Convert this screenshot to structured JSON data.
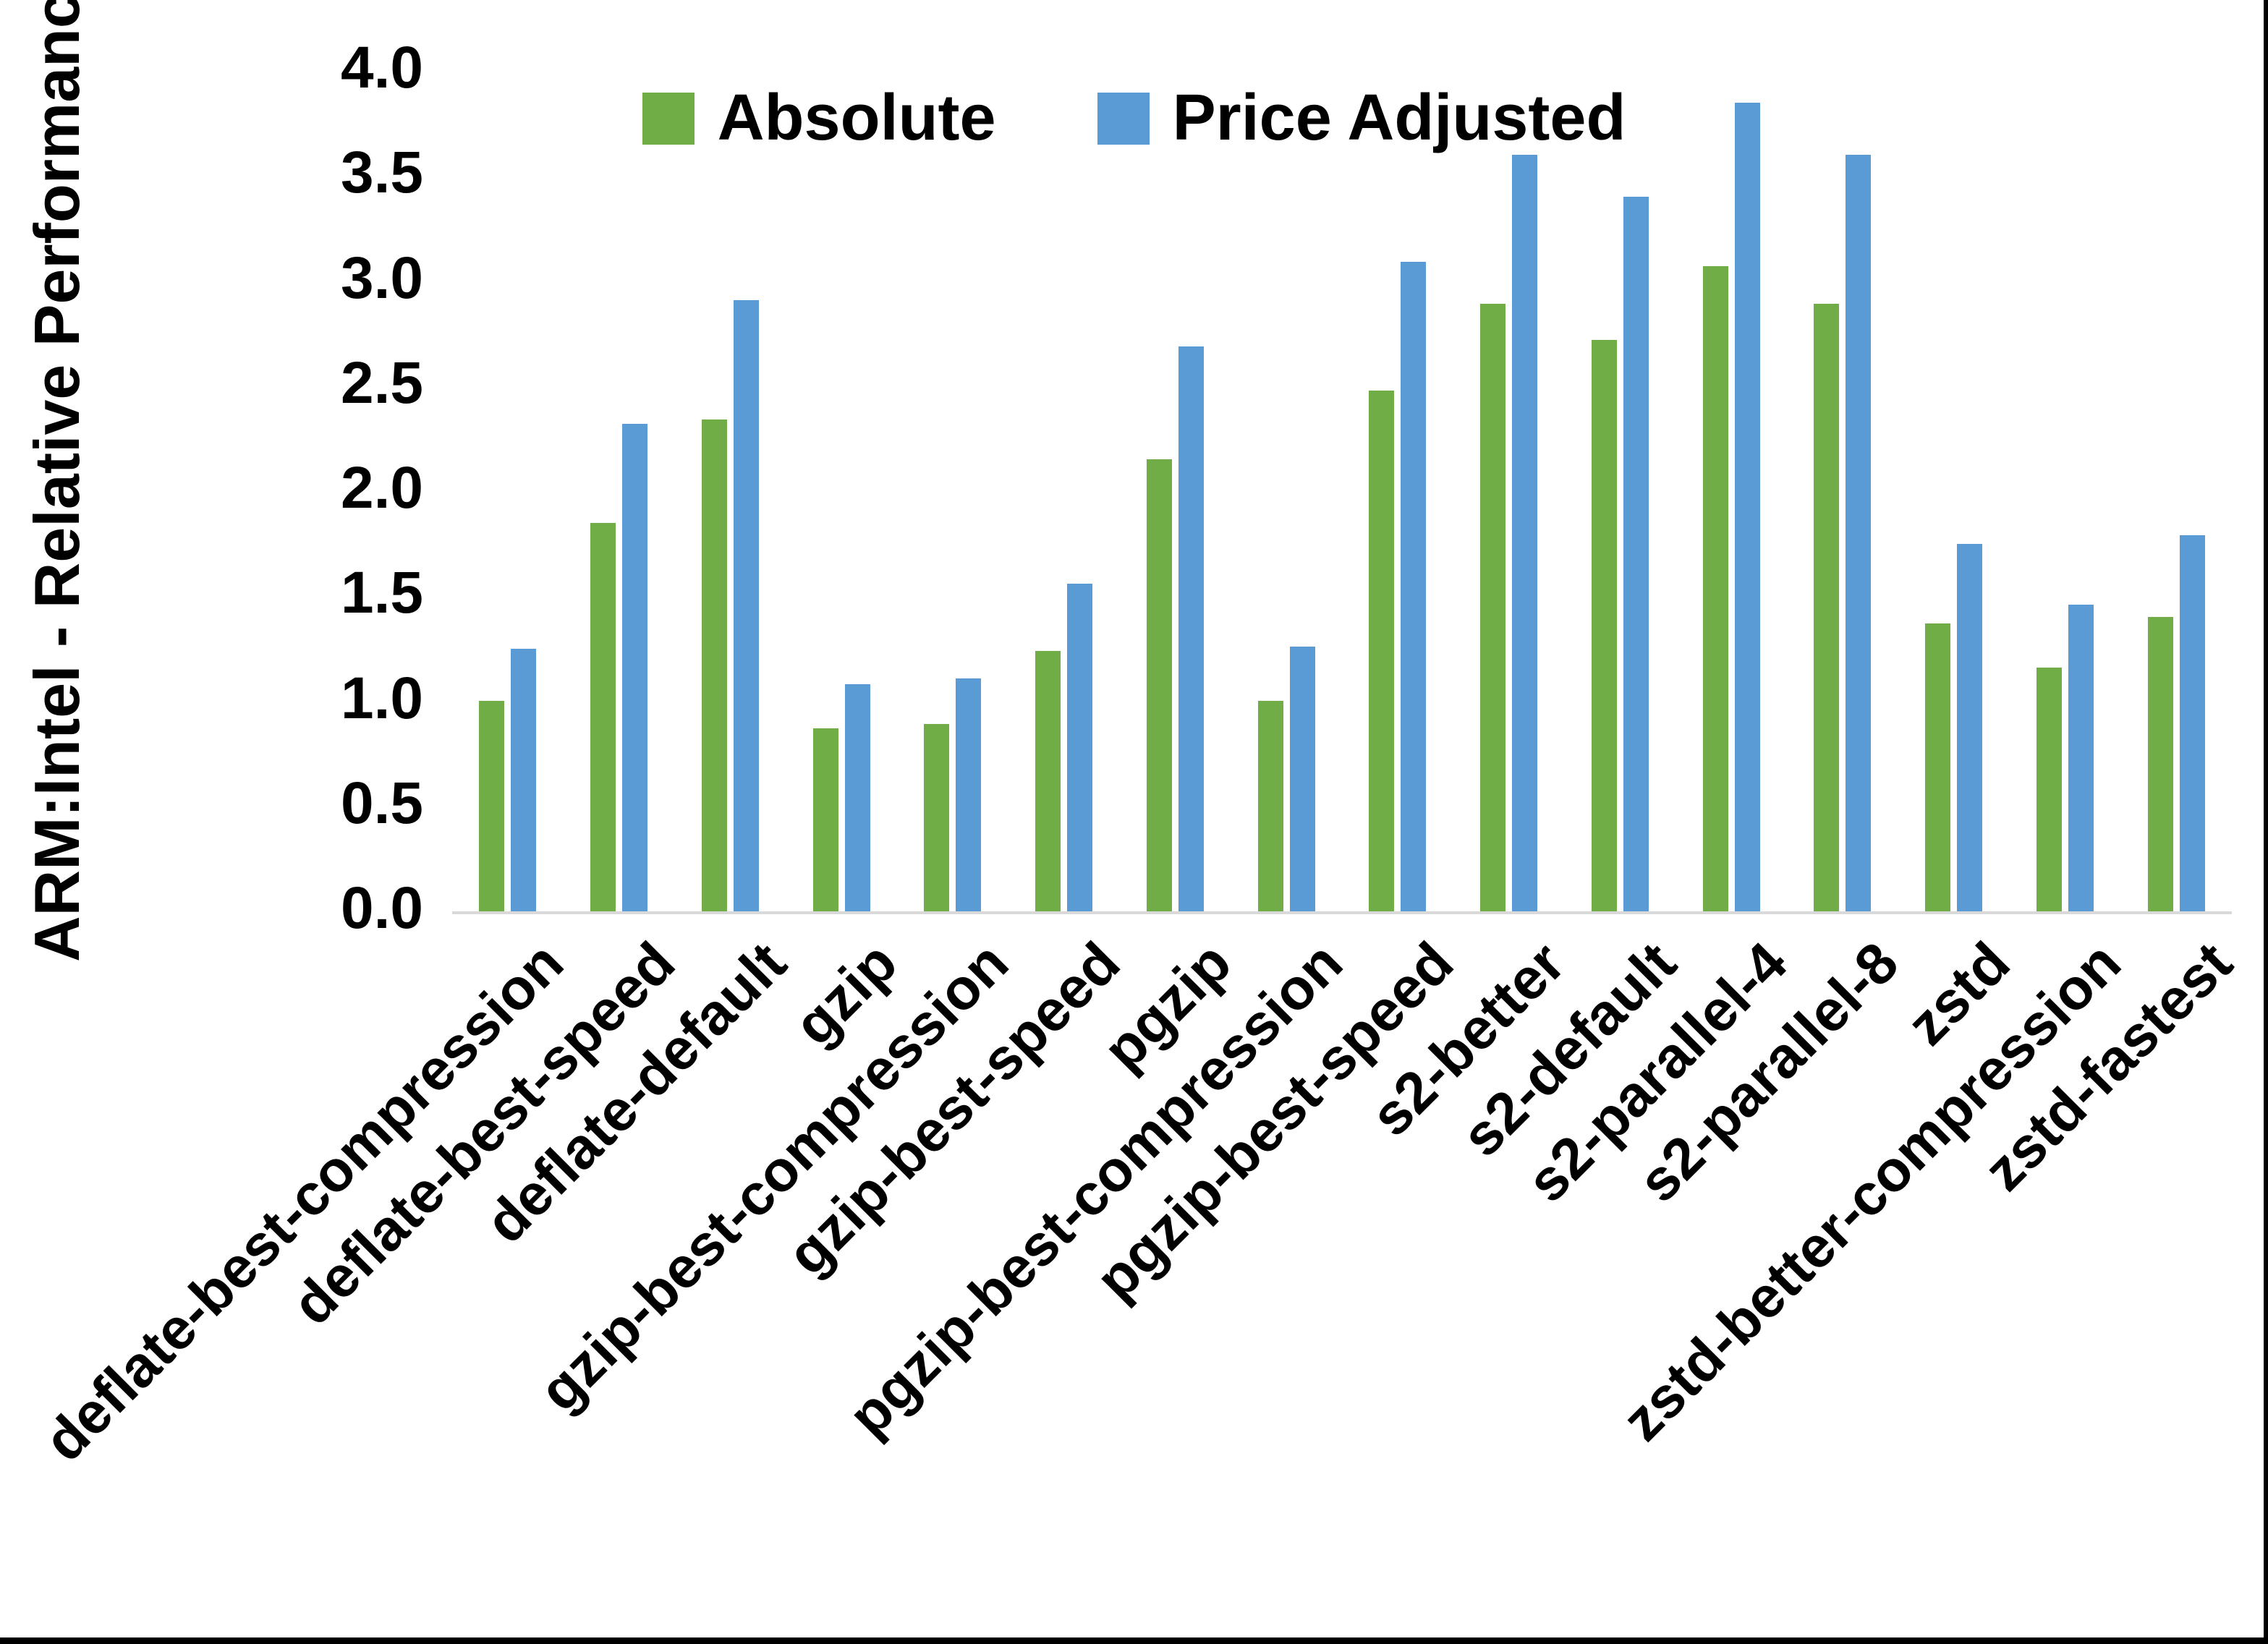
{
  "chart_data": {
    "type": "bar",
    "title": "",
    "xlabel": "",
    "ylabel": "ARM:Intel - Relative Performance",
    "ylim": [
      0.0,
      4.0
    ],
    "ytick_step": 0.5,
    "y_tick_labels": [
      "0.0",
      "0.5",
      "1.0",
      "1.5",
      "2.0",
      "2.5",
      "3.0",
      "3.5",
      "4.0"
    ],
    "grid": false,
    "legend_position": "top-center",
    "categories": [
      "deflate-best-compression",
      "deflate-best-speed",
      "deflate-default",
      "gzip",
      "gzip-best-compression",
      "gzip-best-speed",
      "pgzip",
      "pgzip-best-compression",
      "pgzip-best-speed",
      "s2-better",
      "s2-default",
      "s2-parallel-4",
      "s2-parallel-8",
      "zstd",
      "zstd-better-compression",
      "zstd-fastest"
    ],
    "series": [
      {
        "name": "Absolute",
        "color": "#70AD47",
        "values": [
          1.0,
          1.85,
          2.34,
          0.87,
          0.89,
          1.24,
          2.15,
          1.0,
          2.48,
          2.89,
          2.72,
          3.07,
          2.89,
          1.37,
          1.16,
          1.4
        ]
      },
      {
        "name": "Price Adjusted",
        "color": "#5B9BD5",
        "values": [
          1.25,
          2.32,
          2.91,
          1.08,
          1.11,
          1.56,
          2.69,
          1.26,
          3.09,
          3.6,
          3.4,
          3.85,
          3.6,
          1.75,
          1.46,
          1.79
        ]
      }
    ],
    "frame_border_color": "#000000",
    "axis_line_color": "#D9D9D9"
  }
}
